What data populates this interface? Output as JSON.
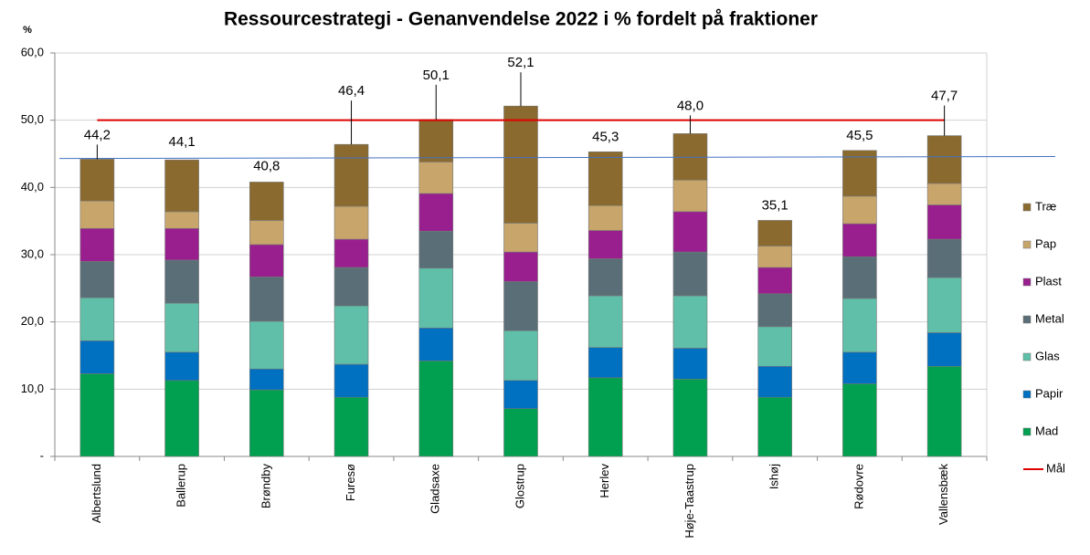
{
  "chart_data": {
    "type": "stacked_bar",
    "title": "Ressourcestrategi - Genanvendelse 2022 i % fordelt på fraktioner",
    "y_label": "%",
    "categories": [
      "Albertslund",
      "Ballerup",
      "Brøndby",
      "Furesø",
      "Gladsaxe",
      "Glostrup",
      "Herlev",
      "Høje-Taastrup",
      "Ishøj",
      "Rødovre",
      "Vallensbæk"
    ],
    "series": [
      {
        "name": "Mad",
        "color": "#00a050",
        "values": [
          12.3,
          11.3,
          9.9,
          8.8,
          14.2,
          7.1,
          11.7,
          11.5,
          8.8,
          10.8,
          13.4
        ]
      },
      {
        "name": "Papir",
        "color": "#0070c0",
        "values": [
          4.9,
          4.2,
          3.1,
          4.9,
          4.9,
          4.2,
          4.5,
          4.6,
          4.6,
          4.7,
          5.0
        ]
      },
      {
        "name": "Glas",
        "color": "#5fbfa8",
        "values": [
          6.4,
          7.3,
          7.1,
          8.7,
          8.9,
          7.4,
          7.7,
          7.8,
          5.9,
          8.0,
          8.2
        ]
      },
      {
        "name": "Metal",
        "color": "#5a6e78",
        "values": [
          5.4,
          6.4,
          6.6,
          5.7,
          5.5,
          7.3,
          5.5,
          6.5,
          4.9,
          6.2,
          5.7
        ]
      },
      {
        "name": "Plast",
        "color": "#991f8e",
        "values": [
          4.9,
          4.7,
          4.8,
          4.2,
          5.6,
          4.4,
          4.2,
          6.0,
          3.9,
          4.9,
          5.1
        ]
      },
      {
        "name": "Pap",
        "color": "#c8a56a",
        "values": [
          4.1,
          2.5,
          3.6,
          4.9,
          4.7,
          4.3,
          3.7,
          4.7,
          3.2,
          4.1,
          3.2
        ]
      },
      {
        "name": "Træ",
        "color": "#8a6a2e",
        "values": [
          6.2,
          7.7,
          5.7,
          9.2,
          6.3,
          17.4,
          8.0,
          6.9,
          3.8,
          6.8,
          7.1
        ]
      }
    ],
    "totals": {
      "values": [
        44.2,
        44.1,
        40.8,
        46.4,
        50.1,
        52.1,
        45.3,
        48.0,
        35.1,
        45.5,
        47.7
      ],
      "value_labels": [
        "44,2",
        "44,1",
        "40,8",
        "46,4",
        "50,1",
        "52,1",
        "45,3",
        "48,0",
        "35,1",
        "45,5",
        "47,7"
      ]
    },
    "target": {
      "name": "Mål",
      "color": "#e00000",
      "value": 50
    },
    "average_line": {
      "color": "#4472c4",
      "values": [
        44.3,
        44.6
      ]
    },
    "ylim": [
      0,
      60
    ],
    "yticks": [
      {
        "value": 0,
        "label": "-"
      },
      {
        "value": 10,
        "label": "10,0"
      },
      {
        "value": 20,
        "label": "20,0"
      },
      {
        "value": 30,
        "label": "30,0"
      },
      {
        "value": 40,
        "label": "40,0"
      },
      {
        "value": 50,
        "label": "50,0"
      },
      {
        "value": 60,
        "label": "60,0"
      }
    ],
    "grid": true,
    "legend": "right"
  }
}
